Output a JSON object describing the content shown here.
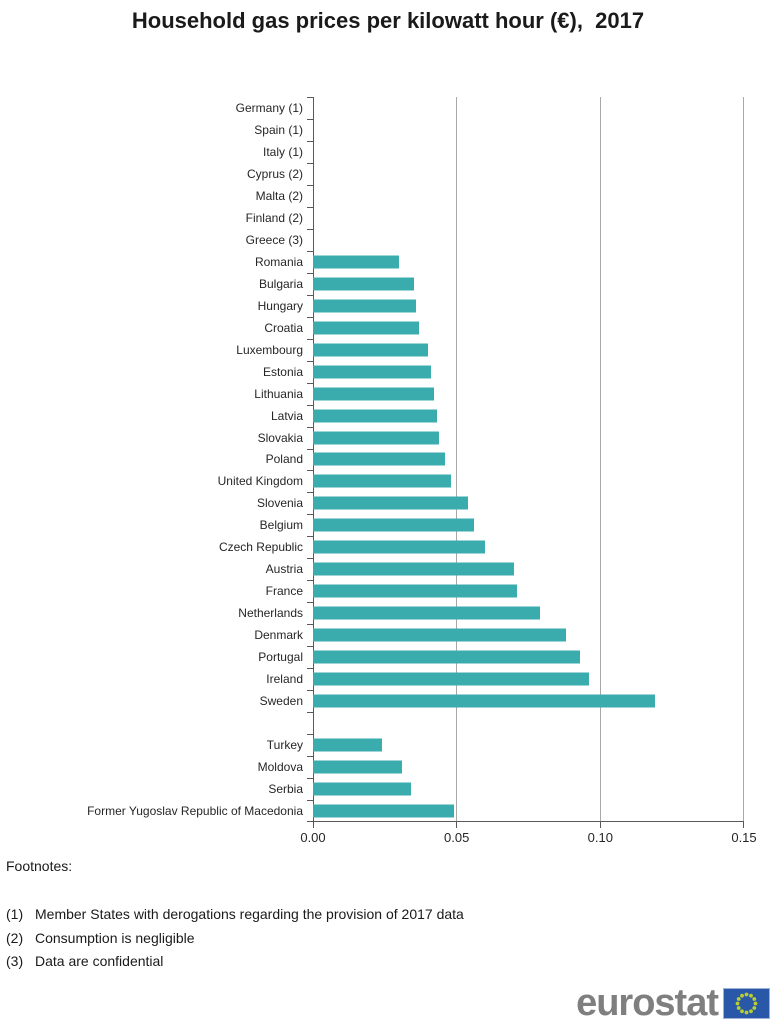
{
  "title": "Household gas prices per kilowatt hour (€),  2017",
  "footnotes": {
    "heading": "Footnotes:",
    "items": [
      {
        "marker": "(1)",
        "text": "Member States with derogations regarding the provision of 2017 data"
      },
      {
        "marker": "(2)",
        "text": "Consumption is negligible"
      },
      {
        "marker": "(3)",
        "text": "Data are confidential"
      }
    ]
  },
  "logo": {
    "text": "eurostat",
    "flag_icon": "eu-flag-icon",
    "flag_blue": "#2a58a8",
    "star_color": "#b8cf2e",
    "text_color": "#7f7f7f"
  },
  "colors": {
    "bar": "#3aacae",
    "gridline": "#a8a8a8",
    "axis": "#595959"
  },
  "chart_data": {
    "type": "bar",
    "orientation": "horizontal",
    "title": "Household gas prices per kilowatt hour (€), 2017",
    "xlabel": "",
    "ylabel": "",
    "xlim": [
      0,
      0.15
    ],
    "grid": "vertical gridlines at each x tick",
    "legend": "none",
    "x_ticks": [
      {
        "label": "0.00",
        "value": 0.0
      },
      {
        "label": "0.05",
        "value": 0.05
      },
      {
        "label": "0.10",
        "value": 0.1
      },
      {
        "label": "0.15",
        "value": 0.15
      }
    ],
    "rows": [
      {
        "label": "Germany (1)",
        "value": null
      },
      {
        "label": "Spain (1)",
        "value": null
      },
      {
        "label": "Italy (1)",
        "value": null
      },
      {
        "label": "Cyprus (2)",
        "value": null
      },
      {
        "label": "Malta (2)",
        "value": null
      },
      {
        "label": "Finland (2)",
        "value": null
      },
      {
        "label": "Greece (3)",
        "value": null
      },
      {
        "label": "Romania",
        "value": 0.03
      },
      {
        "label": "Bulgaria",
        "value": 0.035
      },
      {
        "label": "Hungary",
        "value": 0.036
      },
      {
        "label": "Croatia",
        "value": 0.037
      },
      {
        "label": "Luxembourg",
        "value": 0.04
      },
      {
        "label": "Estonia",
        "value": 0.041
      },
      {
        "label": "Lithuania",
        "value": 0.042
      },
      {
        "label": "Latvia",
        "value": 0.043
      },
      {
        "label": "Slovakia",
        "value": 0.044
      },
      {
        "label": "Poland",
        "value": 0.046
      },
      {
        "label": "United Kingdom",
        "value": 0.048
      },
      {
        "label": "Slovenia",
        "value": 0.054
      },
      {
        "label": "Belgium",
        "value": 0.056
      },
      {
        "label": "Czech Republic",
        "value": 0.06
      },
      {
        "label": "Austria",
        "value": 0.07
      },
      {
        "label": "France",
        "value": 0.071
      },
      {
        "label": "Netherlands",
        "value": 0.079
      },
      {
        "label": "Denmark",
        "value": 0.088
      },
      {
        "label": "Portugal",
        "value": 0.093
      },
      {
        "label": "Ireland",
        "value": 0.096
      },
      {
        "label": "Sweden",
        "value": 0.119
      },
      {
        "label": "",
        "value": null
      },
      {
        "label": "Turkey",
        "value": 0.024
      },
      {
        "label": "Moldova",
        "value": 0.031
      },
      {
        "label": "Serbia",
        "value": 0.034
      },
      {
        "label": "Former Yugoslav Republic of Macedonia",
        "value": 0.049
      }
    ]
  }
}
